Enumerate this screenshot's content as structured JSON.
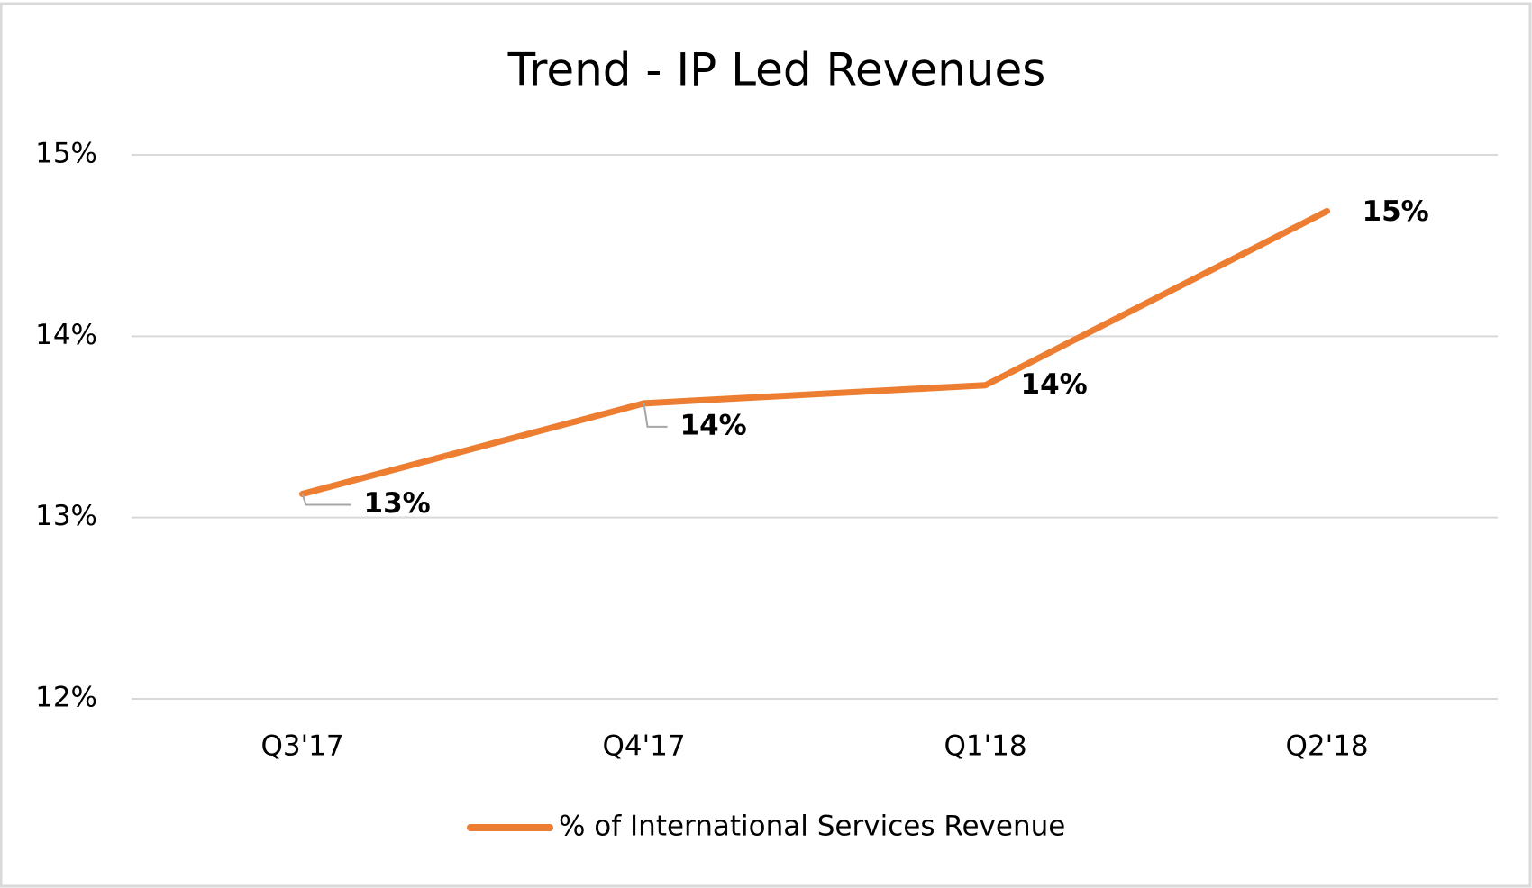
{
  "chart_data": {
    "type": "line",
    "title": "Trend - IP Led Revenues",
    "categories": [
      "Q3'17",
      "Q4'17",
      "Q1'18",
      "Q2'18"
    ],
    "series": [
      {
        "name": "% of International Services Revenue",
        "color": "#ed7d31",
        "values": [
          13.13,
          13.63,
          13.73,
          14.69
        ],
        "value_labels": [
          "13%",
          "14%",
          "14%",
          "15%"
        ]
      }
    ],
    "ylim": [
      12,
      15
    ],
    "yticks": [
      {
        "value": 12,
        "label": "12%"
      },
      {
        "value": 13,
        "label": "13%"
      },
      {
        "value": 14,
        "label": "14%"
      },
      {
        "value": 15,
        "label": "15%"
      }
    ],
    "grid": true,
    "legend": "bottom"
  }
}
